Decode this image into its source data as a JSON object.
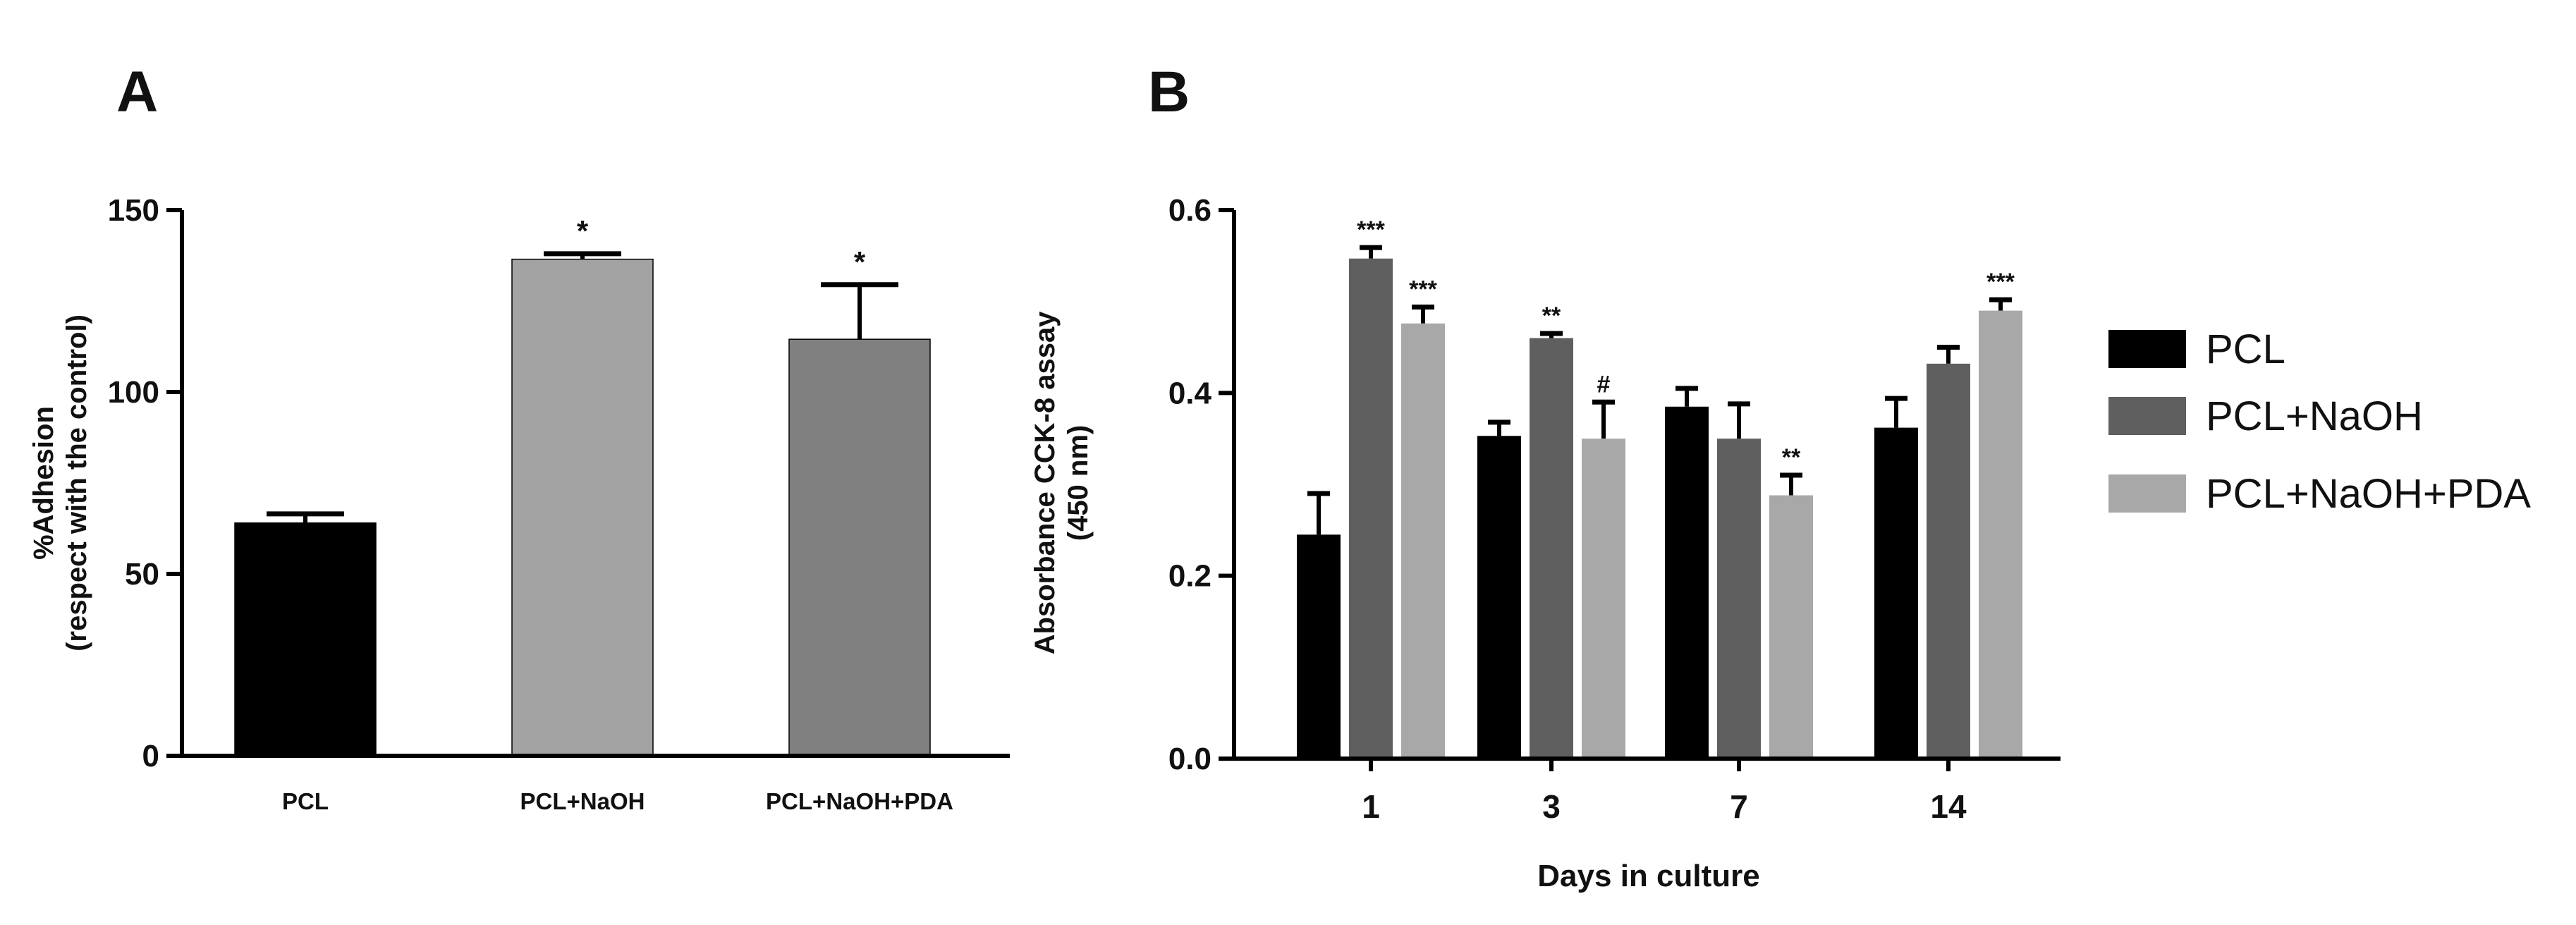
{
  "chart_data": [
    {
      "panel": "A",
      "type": "bar",
      "categories": [
        "PCL",
        "PCL+NaOH",
        "PCL+NaOH+PDA"
      ],
      "values": [
        64,
        136.5,
        114.5
      ],
      "errors": [
        2.5,
        1.5,
        15
      ],
      "colors": [
        "#000000",
        "#a3a3a3",
        "#808080"
      ],
      "annotations": [
        "",
        "*",
        "*"
      ],
      "ylabel_line1": "%Adhesion",
      "ylabel_line2": "(respect with the control)",
      "xlabel": "",
      "ylim": [
        0,
        150
      ],
      "yticks": [
        "0",
        "50",
        "100",
        "150"
      ]
    },
    {
      "panel": "B",
      "type": "bar",
      "categories": [
        "1",
        "3",
        "7",
        "14"
      ],
      "series": [
        {
          "name": "PCL",
          "color": "#000000",
          "values": [
            0.245,
            0.353,
            0.385,
            0.362
          ],
          "errors": [
            0.045,
            0.015,
            0.02,
            0.032
          ],
          "annotations": [
            "",
            "",
            "",
            ""
          ]
        },
        {
          "name": "PCL+NaOH",
          "color": "#5f5f5f",
          "values": [
            0.547,
            0.46,
            0.35,
            0.432
          ],
          "errors": [
            0.012,
            0.005,
            0.038,
            0.018
          ],
          "annotations": [
            "***",
            "**",
            "",
            ""
          ]
        },
        {
          "name": "PCL+NaOH+PDA",
          "color": "#a8a8a8",
          "values": [
            0.476,
            0.35,
            0.288,
            0.49
          ],
          "errors": [
            0.018,
            0.04,
            0.022,
            0.012
          ],
          "annotations": [
            "***",
            "#",
            "**",
            "***"
          ]
        }
      ],
      "ylabel_line1": "Absorbance CCK-8 assay",
      "ylabel_line2": "(450 nm)",
      "xlabel": "Days in culture",
      "ylim": [
        0,
        0.6
      ],
      "yticks": [
        "0.0",
        "0.2",
        "0.4",
        "0.6"
      ],
      "legend_position": "right"
    }
  ],
  "labels": {
    "panel_a": "A",
    "panel_b": "B"
  }
}
